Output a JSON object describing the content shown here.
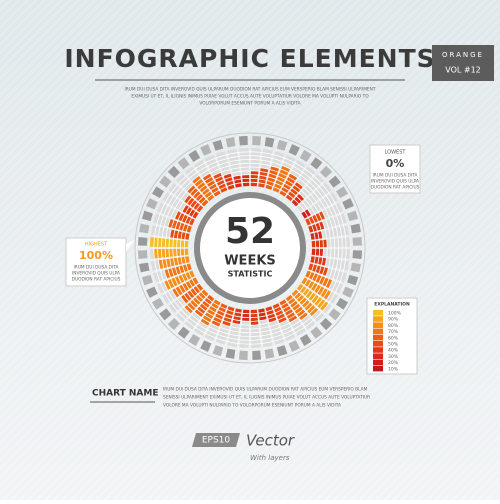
{
  "chart_data": {
    "type": "radial-bar",
    "title": "INFOGRAPHIC ELEMENTS",
    "badge": {
      "top": "ORANGE",
      "bottom": "VOL #12"
    },
    "intro": [
      "IRUM DUI DUSA DITA INVEROVID QUIS ULPARUM DUODION RAT APICIUS EUM VERSPERIO BLAM SENISSI ULPARIMENT",
      "EXIMUSI UT ET, IL ILIGNIS INIMUS PUIAE VOLUT ACCUS AUTE VOLUPTATIUR VOLORE MA VOLUPTI NULPARIO TO",
      "VOLORPORUM ESENIUNT PORUM A ALIS VIDITA"
    ],
    "center": {
      "number": "52",
      "line1": "WEEKS",
      "line2": "STATISTIC"
    },
    "highest": {
      "label": "HIGHEST",
      "value": "100%",
      "text": [
        "IRUM DUI DUSA DITA",
        "INVEROVID QUIS ULPA",
        "DUODION RAT APICIUS"
      ]
    },
    "lowest": {
      "label": "LOWEST",
      "value": "0%",
      "text": [
        "IRUM DUI DUSA DITA",
        "INVEROVID QUIS ULPA",
        "DUODION RAT APICIUS"
      ]
    },
    "explanation": {
      "title": "EXPLANATION",
      "labels": [
        "100%",
        "90%",
        "80%",
        "70%",
        "60%",
        "50%",
        "40%",
        "30%",
        "20%",
        "10%"
      ]
    },
    "colors": [
      "#c8161d",
      "#d11f1a",
      "#d92b17",
      "#e03a15",
      "#e64c14",
      "#ec5f14",
      "#f07616",
      "#f48d1a",
      "#f7a51f",
      "#f9bd26"
    ],
    "values": [
      40,
      50,
      60,
      70,
      60,
      50,
      30,
      0,
      20,
      50,
      40,
      30,
      40,
      30,
      40,
      50,
      70,
      80,
      90,
      80,
      70,
      60,
      50,
      40,
      30,
      40,
      30,
      40,
      50,
      60,
      70,
      60,
      70,
      60,
      70,
      80,
      70,
      80,
      90,
      100,
      50,
      60,
      50,
      40,
      50,
      60,
      70,
      60,
      50,
      40,
      30,
      30
    ],
    "ylim": [
      0,
      100
    ],
    "chart_name": "CHART NAME",
    "chart_text": [
      "IRUM DUI DUSA DITA INVEROVID QUIS ULPARUM DUODION RAT APICIUS EUM VERSPERIO BLAM",
      "SENISSI ULPARIMENT EXIMUSI UT ET, IL ILIGNIS INIMUS PUIAE VOLUT ACCUS AUTE VOLUPTATIUR",
      "VOLORE MA VOLUPTI NULPARIO TO VOLORPORUM ESENIUNT PORUM A ALIS VIDITA"
    ],
    "footer": {
      "eps": "EPS10",
      "vector": "Vector",
      "layers": "With layers"
    }
  }
}
